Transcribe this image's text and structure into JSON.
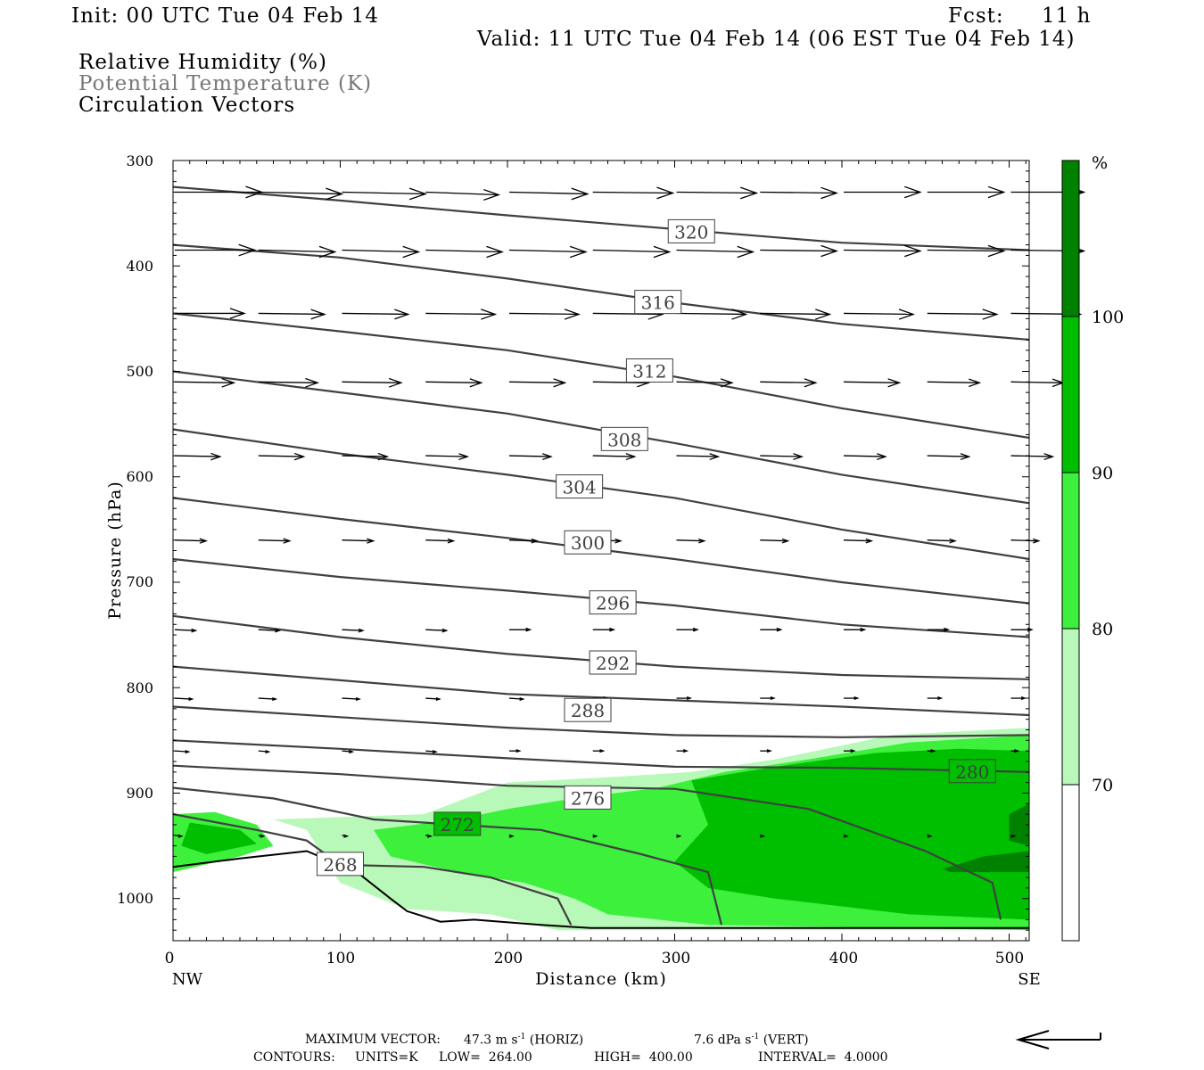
{
  "header": {
    "init": "Init: 00 UTC Tue 04 Feb 14",
    "fcst_label": "Fcst:",
    "fcst_value": "11 h",
    "valid": "Valid: 11 UTC Tue 04 Feb 14 (06 EST Tue 04 Feb 14)",
    "fields": [
      "Relative Humidity (%)",
      "Potential Temperature (K)",
      "Circulation Vectors"
    ]
  },
  "footer": {
    "max_vector_label": "MAXIMUM VECTOR:",
    "horiz": "47.3 m s",
    "horiz_unit": "(HORIZ)",
    "vert": "7.6 dPa s",
    "vert_unit": "(VERT)",
    "exp": "-1",
    "contours_label": "CONTOURS:",
    "units": "UNITS=K",
    "low": "LOW=  264.00",
    "high": "HIGH=  400.00",
    "interval": "INTERVAL=  4.0000"
  },
  "colors": {
    "rh70": "#b8f8b8",
    "rh80": "#3cf03c",
    "rh90": "#00bf00",
    "rh100": "#008200",
    "theta": "#404040",
    "vector": "#000000"
  },
  "chart_data": {
    "type": "cross-section",
    "xlabel": "Distance (km)",
    "ylabel": "Pressure (hPa)",
    "xlim": [
      0,
      512
    ],
    "ylim": [
      1040,
      300
    ],
    "x_ticks": [
      0,
      100,
      200,
      300,
      400,
      500
    ],
    "y_ticks": [
      300,
      400,
      500,
      600,
      700,
      800,
      900,
      1000
    ],
    "x_end_labels": [
      "NW",
      "SE"
    ],
    "colorbar": {
      "unit": "%",
      "levels": [
        70,
        80,
        90,
        100
      ]
    },
    "theta_contours": [
      {
        "label": "320",
        "label_x": 310,
        "label_p": 368,
        "points": [
          [
            0,
            325
          ],
          [
            100,
            338
          ],
          [
            200,
            352
          ],
          [
            300,
            365
          ],
          [
            400,
            378
          ],
          [
            512,
            385
          ]
        ]
      },
      {
        "label": "316",
        "label_x": 290,
        "label_p": 435,
        "points": [
          [
            0,
            380
          ],
          [
            100,
            392
          ],
          [
            200,
            412
          ],
          [
            300,
            435
          ],
          [
            400,
            455
          ],
          [
            512,
            470
          ]
        ]
      },
      {
        "label": "312",
        "label_x": 285,
        "label_p": 500,
        "points": [
          [
            0,
            445
          ],
          [
            100,
            462
          ],
          [
            200,
            480
          ],
          [
            300,
            505
          ],
          [
            400,
            535
          ],
          [
            512,
            563
          ]
        ]
      },
      {
        "label": "308",
        "label_x": 270,
        "label_p": 565,
        "points": [
          [
            0,
            500
          ],
          [
            100,
            520
          ],
          [
            200,
            540
          ],
          [
            300,
            568
          ],
          [
            400,
            598
          ],
          [
            512,
            625
          ]
        ]
      },
      {
        "label": "304",
        "label_x": 243,
        "label_p": 610,
        "points": [
          [
            0,
            555
          ],
          [
            100,
            578
          ],
          [
            200,
            598
          ],
          [
            300,
            620
          ],
          [
            400,
            650
          ],
          [
            512,
            678
          ]
        ]
      },
      {
        "label": "300",
        "label_x": 248,
        "label_p": 663,
        "points": [
          [
            0,
            620
          ],
          [
            100,
            640
          ],
          [
            200,
            658
          ],
          [
            300,
            678
          ],
          [
            400,
            700
          ],
          [
            512,
            720
          ]
        ]
      },
      {
        "label": "296",
        "label_x": 263,
        "label_p": 720,
        "points": [
          [
            0,
            678
          ],
          [
            100,
            695
          ],
          [
            200,
            708
          ],
          [
            300,
            722
          ],
          [
            400,
            740
          ],
          [
            512,
            752
          ]
        ]
      },
      {
        "label": "292",
        "label_x": 263,
        "label_p": 777,
        "points": [
          [
            0,
            732
          ],
          [
            100,
            752
          ],
          [
            200,
            768
          ],
          [
            300,
            780
          ],
          [
            400,
            788
          ],
          [
            512,
            792
          ]
        ]
      },
      {
        "label": "288",
        "label_x": 248,
        "label_p": 822,
        "points": [
          [
            0,
            780
          ],
          [
            100,
            793
          ],
          [
            200,
            806
          ],
          [
            300,
            812
          ],
          [
            400,
            818
          ],
          [
            512,
            826
          ]
        ]
      },
      {
        "label": "",
        "label_x": 0,
        "label_p": 0,
        "points": [
          [
            0,
            818
          ],
          [
            100,
            828
          ],
          [
            200,
            838
          ],
          [
            300,
            845
          ],
          [
            400,
            847
          ],
          [
            512,
            845
          ]
        ]
      },
      {
        "label": "280",
        "label_x": 478,
        "label_p": 880,
        "points": [
          [
            0,
            850
          ],
          [
            100,
            858
          ],
          [
            200,
            867
          ],
          [
            300,
            875
          ],
          [
            400,
            876
          ],
          [
            512,
            880
          ]
        ]
      },
      {
        "label": "276",
        "label_x": 248,
        "label_p": 905,
        "points": [
          [
            0,
            874
          ],
          [
            100,
            882
          ],
          [
            200,
            893
          ],
          [
            300,
            896
          ],
          [
            380,
            915
          ],
          [
            450,
            955
          ],
          [
            490,
            985
          ],
          [
            495,
            1020
          ]
        ]
      },
      {
        "label": "272",
        "label_x": 170,
        "label_p": 930,
        "points": [
          [
            0,
            895
          ],
          [
            60,
            905
          ],
          [
            120,
            925
          ],
          [
            170,
            930
          ],
          [
            220,
            935
          ],
          [
            280,
            958
          ],
          [
            320,
            975
          ],
          [
            328,
            1025
          ]
        ]
      },
      {
        "label": "268",
        "label_x": 100,
        "label_p": 968,
        "points": [
          [
            0,
            920
          ],
          [
            50,
            935
          ],
          [
            80,
            945
          ],
          [
            100,
            968
          ],
          [
            150,
            970
          ],
          [
            190,
            980
          ],
          [
            230,
            1000
          ],
          [
            238,
            1025
          ]
        ]
      }
    ],
    "rh_regions": [
      {
        "level": 70,
        "points": [
          [
            60,
            925
          ],
          [
            150,
            920
          ],
          [
            200,
            890
          ],
          [
            260,
            885
          ],
          [
            310,
            880
          ],
          [
            360,
            868
          ],
          [
            430,
            845
          ],
          [
            512,
            838
          ],
          [
            512,
            1030
          ],
          [
            230,
            1030
          ],
          [
            190,
            1015
          ],
          [
            140,
            1010
          ],
          [
            100,
            985
          ],
          [
            80,
            935
          ]
        ]
      },
      {
        "level": 80,
        "points": [
          [
            0,
            920
          ],
          [
            25,
            918
          ],
          [
            50,
            930
          ],
          [
            60,
            950
          ],
          [
            40,
            960
          ],
          [
            0,
            975
          ]
        ]
      },
      {
        "level": 80,
        "points": [
          [
            120,
            935
          ],
          [
            170,
            925
          ],
          [
            200,
            915
          ],
          [
            240,
            905
          ],
          [
            290,
            895
          ],
          [
            330,
            880
          ],
          [
            380,
            868
          ],
          [
            440,
            852
          ],
          [
            512,
            845
          ],
          [
            512,
            1030
          ],
          [
            320,
            1025
          ],
          [
            260,
            1015
          ],
          [
            240,
            1000
          ],
          [
            210,
            985
          ],
          [
            170,
            975
          ],
          [
            130,
            960
          ]
        ]
      },
      {
        "level": 90,
        "points": [
          [
            10,
            928
          ],
          [
            40,
            935
          ],
          [
            50,
            948
          ],
          [
            20,
            958
          ],
          [
            5,
            950
          ]
        ]
      },
      {
        "level": 90,
        "points": [
          [
            310,
            888
          ],
          [
            360,
            875
          ],
          [
            420,
            862
          ],
          [
            470,
            858
          ],
          [
            512,
            860
          ],
          [
            512,
            1020
          ],
          [
            440,
            1015
          ],
          [
            360,
            1000
          ],
          [
            320,
            990
          ],
          [
            300,
            965
          ],
          [
            320,
            930
          ]
        ]
      },
      {
        "level": 100,
        "points": [
          [
            460,
            972
          ],
          [
            485,
            960
          ],
          [
            512,
            955
          ],
          [
            512,
            975
          ],
          [
            465,
            975
          ]
        ]
      },
      {
        "level": 100,
        "points": [
          [
            500,
            920
          ],
          [
            512,
            910
          ],
          [
            512,
            950
          ],
          [
            500,
            945
          ]
        ]
      }
    ],
    "terrain": [
      [
        0,
        970
      ],
      [
        40,
        962
      ],
      [
        80,
        955
      ],
      [
        110,
        975
      ],
      [
        130,
        1000
      ],
      [
        140,
        1012
      ],
      [
        160,
        1022
      ],
      [
        180,
        1020
      ],
      [
        220,
        1025
      ],
      [
        250,
        1028
      ],
      [
        300,
        1028
      ],
      [
        400,
        1028
      ],
      [
        512,
        1028
      ]
    ],
    "vectors": {
      "x": [
        0,
        50,
        100,
        150,
        200,
        250,
        300,
        350,
        400,
        450,
        500
      ],
      "levels": [
        {
          "p": 330,
          "u": [
            50,
            48,
            48,
            42,
            45,
            46,
            46,
            44,
            44,
            44,
            42
          ],
          "w": [
            0,
            2,
            2,
            3,
            2,
            1,
            1,
            1,
            0,
            0,
            0
          ]
        },
        {
          "p": 385,
          "u": [
            46,
            44,
            44,
            44,
            44,
            44,
            44,
            44,
            44,
            44,
            42
          ],
          "w": [
            0,
            2,
            2,
            2,
            2,
            2,
            2,
            1,
            1,
            1,
            1
          ]
        },
        {
          "p": 445,
          "u": [
            40,
            38,
            38,
            40,
            40,
            40,
            40,
            40,
            40,
            40,
            40
          ],
          "w": [
            0,
            1,
            1,
            1,
            1,
            1,
            1,
            1,
            1,
            1,
            1
          ]
        },
        {
          "p": 510,
          "u": [
            34,
            34,
            34,
            32,
            32,
            32,
            32,
            32,
            32,
            30,
            30
          ],
          "w": [
            1,
            1,
            1,
            1,
            1,
            1,
            1,
            1,
            1,
            1,
            1
          ]
        },
        {
          "p": 580,
          "u": [
            26,
            26,
            26,
            24,
            24,
            24,
            24,
            24,
            24,
            24,
            24
          ],
          "w": [
            1,
            1,
            1,
            1,
            1,
            1,
            1,
            1,
            1,
            1,
            1
          ]
        },
        {
          "p": 660,
          "u": [
            18,
            18,
            18,
            16,
            16,
            16,
            16,
            16,
            16,
            16,
            16
          ],
          "w": [
            1,
            1,
            1,
            1,
            1,
            1,
            1,
            1,
            1,
            1,
            1
          ]
        },
        {
          "p": 745,
          "u": [
            12,
            12,
            12,
            12,
            12,
            12,
            12,
            12,
            12,
            12,
            12
          ],
          "w": [
            1,
            1,
            1,
            1,
            0,
            0,
            0,
            0,
            0,
            0,
            0
          ]
        },
        {
          "p": 810,
          "u": [
            10,
            10,
            10,
            8,
            8,
            8,
            8,
            8,
            8,
            8,
            8
          ],
          "w": [
            1,
            1,
            1,
            1,
            1,
            0,
            0,
            0,
            0,
            0,
            0
          ]
        },
        {
          "p": 860,
          "u": [
            8,
            6,
            6,
            6,
            6,
            6,
            6,
            6,
            6,
            4,
            4
          ],
          "w": [
            1,
            1,
            1,
            1,
            0,
            0,
            0,
            0,
            0,
            0,
            0
          ]
        },
        {
          "p": 940,
          "u": [
            4,
            3,
            3,
            3,
            2,
            2,
            2,
            2,
            2,
            2,
            2
          ],
          "w": [
            1,
            1,
            1,
            1,
            1,
            1,
            1,
            1,
            1,
            1,
            1
          ]
        }
      ]
    }
  }
}
